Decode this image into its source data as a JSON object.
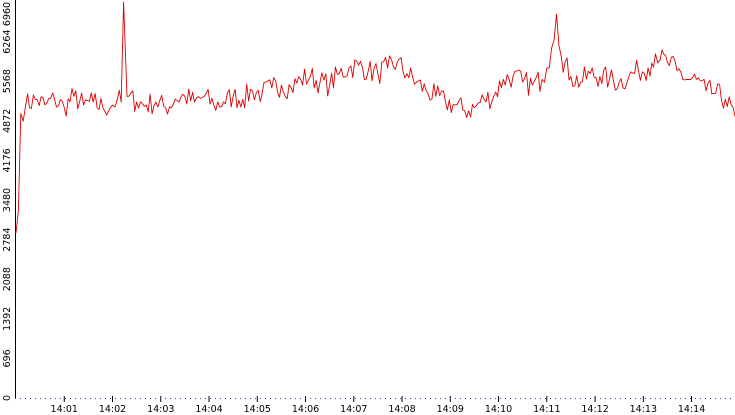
{
  "chart_data": {
    "type": "line",
    "title": "",
    "xlabel": "",
    "ylabel": "",
    "ylim": [
      0,
      6960
    ],
    "yticks": [
      0,
      696,
      1392,
      2088,
      2784,
      3480,
      4176,
      4872,
      5568,
      6264,
      6960
    ],
    "xticks": [
      "14:01",
      "14:02",
      "14:03",
      "14:04",
      "14:05",
      "14:06",
      "14:07",
      "14:08",
      "14:09",
      "14:10",
      "14:11",
      "14:12",
      "14:13",
      "14:14"
    ],
    "x_range_minutes": [
      0.0,
      14.9
    ],
    "grid": false,
    "legend": "none",
    "series": [
      {
        "color": "#dd0000",
        "x_minutes": [
          0.0,
          0.05,
          0.1,
          0.2,
          0.4,
          0.6,
          0.8,
          1.0,
          1.2,
          1.4,
          1.6,
          1.8,
          2.0,
          2.1,
          2.18,
          2.23,
          2.3,
          2.5,
          2.7,
          2.9,
          3.1,
          3.3,
          3.5,
          3.7,
          3.9,
          4.1,
          4.3,
          4.5,
          4.7,
          4.9,
          5.1,
          5.3,
          5.5,
          5.7,
          5.9,
          6.1,
          6.3,
          6.5,
          6.7,
          6.9,
          7.1,
          7.3,
          7.5,
          7.7,
          7.9,
          8.1,
          8.3,
          8.5,
          8.7,
          8.9,
          9.1,
          9.3,
          9.5,
          9.7,
          9.9,
          10.1,
          10.3,
          10.5,
          10.7,
          10.9,
          11.0,
          11.1,
          11.2,
          11.3,
          11.5,
          11.7,
          11.9,
          12.1,
          12.3,
          12.5,
          12.7,
          12.9,
          13.1,
          13.25,
          13.35,
          13.5,
          13.7,
          13.9,
          14.1,
          14.3,
          14.5,
          14.7,
          14.9
        ],
        "values": [
          2900,
          3300,
          5000,
          5150,
          5250,
          5150,
          5250,
          5100,
          5300,
          5150,
          5200,
          5100,
          5150,
          5250,
          5200,
          6960,
          5300,
          5200,
          5150,
          5200,
          5100,
          5250,
          5300,
          5200,
          5300,
          5150,
          5200,
          5300,
          5250,
          5400,
          5350,
          5450,
          5500,
          5450,
          5600,
          5650,
          5550,
          5500,
          5700,
          5800,
          5850,
          5750,
          5700,
          5800,
          5900,
          5700,
          5550,
          5400,
          5300,
          5200,
          5150,
          5050,
          5100,
          5250,
          5300,
          5600,
          5650,
          5550,
          5500,
          5600,
          5800,
          6150,
          6750,
          6000,
          5650,
          5550,
          5700,
          5650,
          5600,
          5550,
          5650,
          5750,
          5800,
          6050,
          5950,
          5900,
          5750,
          5600,
          5600,
          5400,
          5350,
          5250,
          4950
        ]
      }
    ]
  }
}
